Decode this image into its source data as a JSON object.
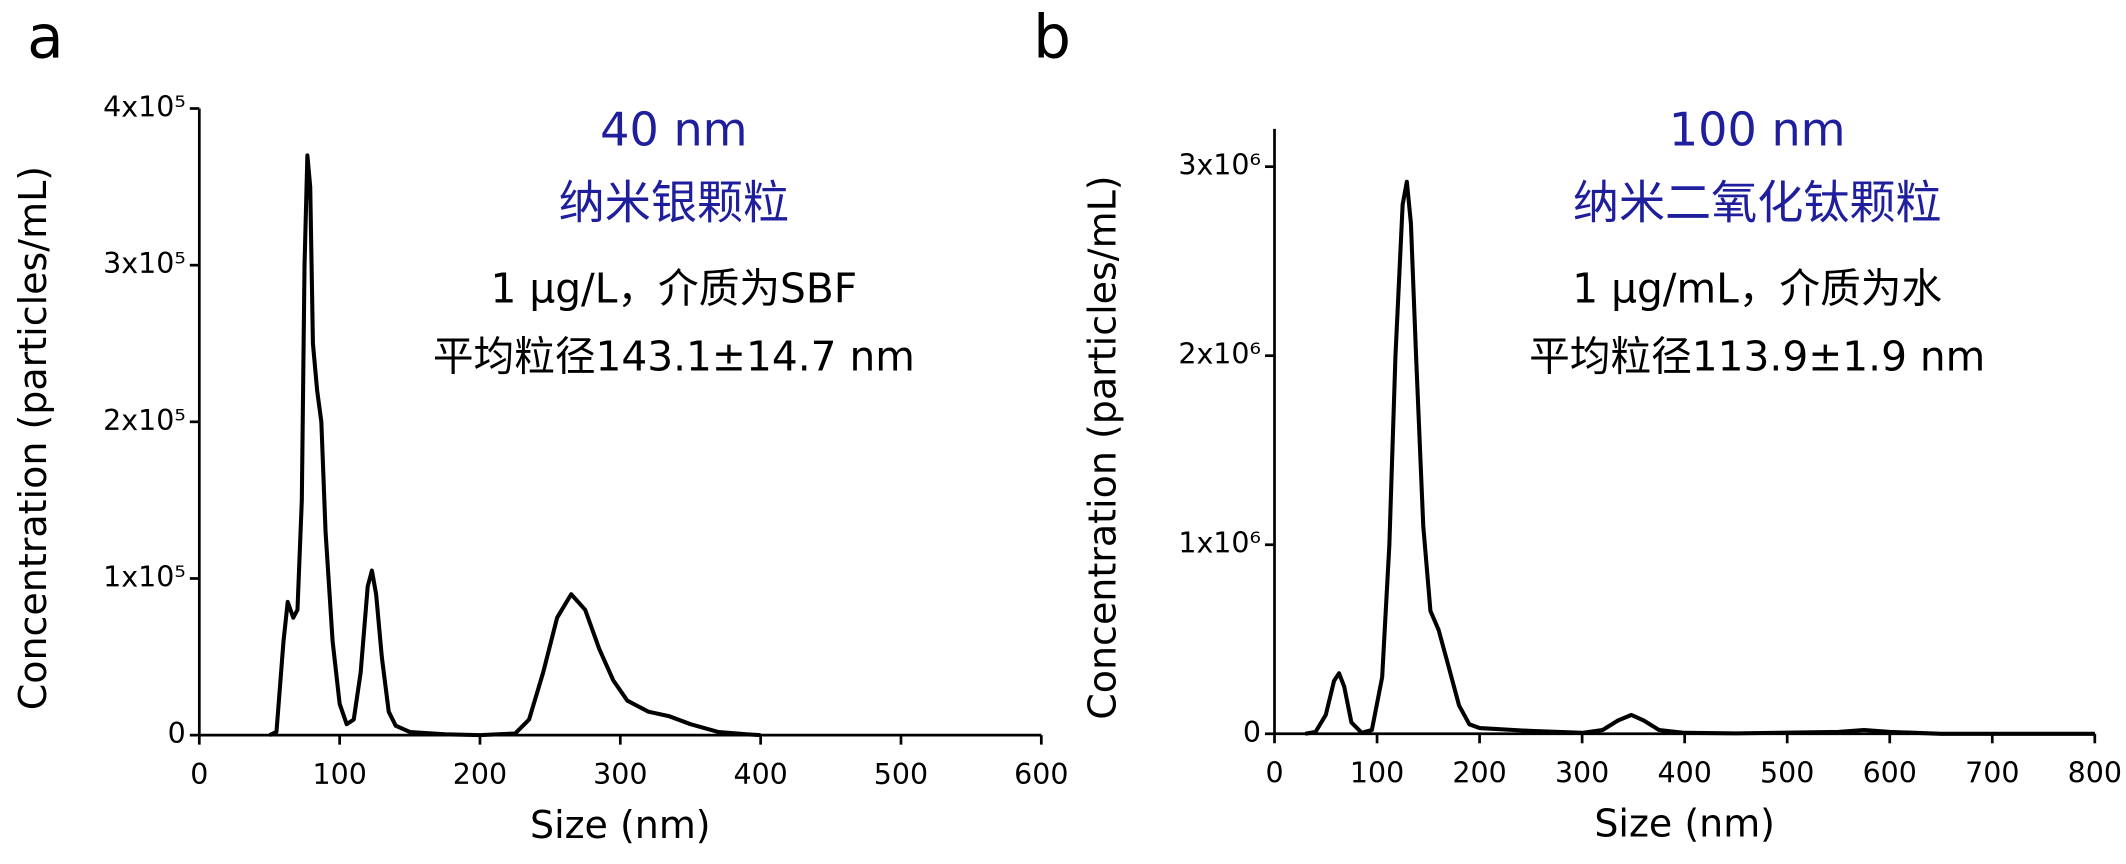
{
  "chart_data": [
    {
      "type": "line",
      "panel_label": "a",
      "x_label": "Size (nm)",
      "y_label": "Concentration (particles/mL)",
      "annotations": [
        "40 nm",
        "纳米银颗粒",
        "1 μg/L，介质为SBF",
        "平均粒径143.1±14.7 nm"
      ],
      "color": "#000000",
      "x": [
        50,
        55,
        60,
        63,
        67,
        70,
        73,
        75,
        77,
        79,
        81,
        84,
        87,
        90,
        95,
        100,
        105,
        110,
        115,
        120,
        123,
        126,
        130,
        135,
        140,
        150,
        175,
        200,
        225,
        235,
        245,
        255,
        265,
        275,
        285,
        295,
        305,
        320,
        335,
        350,
        370,
        390,
        400
      ],
      "values": [
        0,
        2000,
        60000,
        85000,
        75000,
        80000,
        150000,
        300000,
        370000,
        350000,
        250000,
        220000,
        200000,
        130000,
        60000,
        20000,
        7000,
        10000,
        40000,
        95000,
        105000,
        90000,
        50000,
        15000,
        6000,
        2000,
        500,
        0,
        1000,
        10000,
        40000,
        75000,
        90000,
        80000,
        55000,
        35000,
        22000,
        15000,
        12000,
        7000,
        2000,
        500,
        0
      ],
      "xlim": [
        0,
        600
      ],
      "xticks": [
        0,
        100,
        200,
        300,
        400,
        500,
        600
      ],
      "ylim": [
        0,
        400000
      ],
      "yticks": [
        0,
        {
          "value": 100000,
          "label": "1x10⁵"
        },
        {
          "value": 200000,
          "label": "2x10⁵"
        },
        {
          "value": 300000,
          "label": "3x10⁵"
        },
        {
          "value": 400000,
          "label": "4x10⁵"
        }
      ]
    },
    {
      "type": "line",
      "panel_label": "b",
      "x_label": "Size (nm)",
      "y_label": "Concentration (particles/mL)",
      "annotations": [
        "100 nm",
        "纳米二氧化钛颗粒",
        "1 μg/mL，介质为水",
        "平均粒径113.9±1.9 nm"
      ],
      "color": "#000000",
      "x": [
        30,
        40,
        50,
        58,
        63,
        68,
        75,
        85,
        95,
        105,
        112,
        118,
        125,
        129,
        133,
        138,
        145,
        152,
        160,
        170,
        180,
        190,
        200,
        250,
        300,
        320,
        335,
        348,
        360,
        375,
        400,
        450,
        550,
        575,
        600,
        650,
        800
      ],
      "values": [
        0,
        10000,
        100000,
        280000,
        320000,
        250000,
        60000,
        5000,
        20000,
        300000,
        1000000,
        2000000,
        2800000,
        2920000,
        2700000,
        2000000,
        1100000,
        650000,
        550000,
        350000,
        150000,
        50000,
        30000,
        15000,
        5000,
        20000,
        70000,
        100000,
        70000,
        20000,
        5000,
        2000,
        10000,
        20000,
        10000,
        0,
        0
      ],
      "xlim": [
        0,
        800
      ],
      "xticks": [
        0,
        100,
        200,
        300,
        400,
        500,
        600,
        700,
        800
      ],
      "ylim": [
        0,
        3200000
      ],
      "yticks": [
        0,
        {
          "value": 1000000,
          "label": "1x10⁶"
        },
        {
          "value": 2000000,
          "label": "2x10⁶"
        },
        {
          "value": 3000000,
          "label": "3x10⁶"
        }
      ]
    }
  ]
}
